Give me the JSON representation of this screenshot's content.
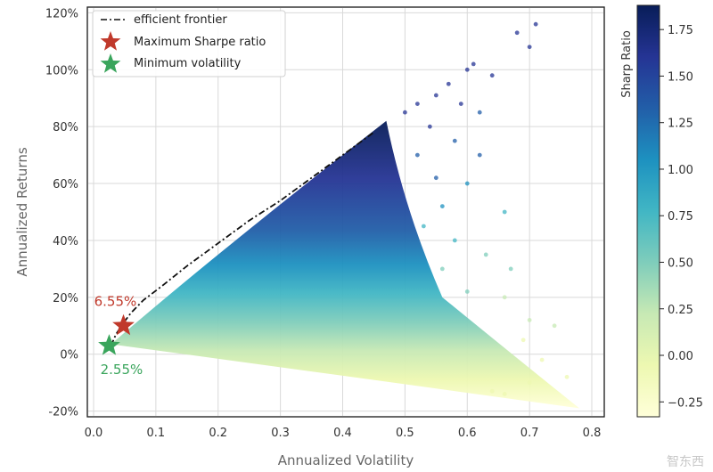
{
  "chart_data": {
    "type": "scatter",
    "title": "",
    "xlabel": "Annualized Volatility",
    "ylabel": "Annualized Returns",
    "xlim": [
      -0.01,
      0.82
    ],
    "ylim": [
      -0.22,
      1.22
    ],
    "x_ticks": [
      0.0,
      0.1,
      0.2,
      0.3,
      0.4,
      0.5,
      0.6,
      0.7,
      0.8
    ],
    "x_tick_labels": [
      "0.0",
      "0.1",
      "0.2",
      "0.3",
      "0.4",
      "0.5",
      "0.6",
      "0.7",
      "0.8"
    ],
    "y_ticks": [
      -0.2,
      0.0,
      0.2,
      0.4,
      0.6,
      0.8,
      1.0,
      1.2
    ],
    "y_tick_labels": [
      "-20%",
      "0%",
      "20%",
      "40%",
      "60%",
      "80%",
      "100%",
      "120%"
    ],
    "grid": true,
    "legend_position": "top-left",
    "series": [
      {
        "name": "efficient frontier",
        "kind": "line",
        "style": "dash-dot",
        "color": "#111111",
        "x": [
          0.028,
          0.036,
          0.048,
          0.06,
          0.08,
          0.11,
          0.15,
          0.2,
          0.25,
          0.3,
          0.35,
          0.4,
          0.45
        ],
        "y": [
          0.03,
          0.07,
          0.11,
          0.145,
          0.19,
          0.24,
          0.31,
          0.39,
          0.47,
          0.54,
          0.62,
          0.7,
          0.78
        ]
      },
      {
        "name": "Maximum Sharpe ratio",
        "kind": "marker",
        "marker": "star",
        "color": "#c0392b",
        "x": [
          0.048
        ],
        "y": [
          0.1
        ]
      },
      {
        "name": "Minimum volatility",
        "kind": "marker",
        "marker": "star",
        "color": "#3aa55c",
        "x": [
          0.025
        ],
        "y": [
          0.03
        ]
      }
    ],
    "portfolio_cloud": {
      "colormap": "YlGnBu",
      "color_by": "Sharp Ratio",
      "apex": [
        0.028,
        0.035
      ],
      "upper_edge_end": [
        0.47,
        0.82
      ],
      "lower_edge_end": [
        0.78,
        -0.19
      ],
      "outlier_points": [
        [
          0.71,
          1.16
        ],
        [
          0.68,
          1.13
        ],
        [
          0.7,
          1.08
        ],
        [
          0.61,
          1.02
        ],
        [
          0.6,
          1.0
        ],
        [
          0.64,
          0.98
        ],
        [
          0.57,
          0.95
        ],
        [
          0.55,
          0.91
        ],
        [
          0.59,
          0.88
        ],
        [
          0.62,
          0.85
        ],
        [
          0.52,
          0.88
        ],
        [
          0.5,
          0.85
        ],
        [
          0.54,
          0.8
        ],
        [
          0.58,
          0.75
        ],
        [
          0.62,
          0.7
        ],
        [
          0.52,
          0.7
        ],
        [
          0.55,
          0.62
        ],
        [
          0.6,
          0.6
        ],
        [
          0.56,
          0.52
        ],
        [
          0.66,
          0.5
        ],
        [
          0.53,
          0.45
        ],
        [
          0.58,
          0.4
        ],
        [
          0.63,
          0.35
        ],
        [
          0.67,
          0.3
        ],
        [
          0.56,
          0.3
        ],
        [
          0.6,
          0.22
        ],
        [
          0.66,
          0.2
        ],
        [
          0.7,
          0.12
        ],
        [
          0.74,
          0.1
        ],
        [
          0.69,
          0.05
        ],
        [
          0.72,
          -0.02
        ],
        [
          0.76,
          -0.08
        ],
        [
          0.7,
          -0.1
        ],
        [
          0.66,
          -0.14
        ],
        [
          0.64,
          -0.13
        ]
      ]
    },
    "annotations": [
      {
        "text": "6.55%",
        "x": 0.035,
        "y": 0.17,
        "color": "#c0392b"
      },
      {
        "text": "2.55%",
        "x": 0.045,
        "y": -0.07,
        "color": "#3aa55c"
      }
    ],
    "colorbar": {
      "label": "Sharp Ratio",
      "min": -0.33,
      "max": 1.88,
      "ticks": [
        -0.25,
        0.0,
        0.25,
        0.5,
        0.75,
        1.0,
        1.25,
        1.5,
        1.75
      ],
      "tick_labels": [
        "−0.25",
        "0.00",
        "0.25",
        "0.50",
        "0.75",
        "1.00",
        "1.25",
        "1.50",
        "1.75"
      ],
      "colors": [
        "#ffffd9",
        "#edf8b1",
        "#c7e9b4",
        "#7fcdbb",
        "#41b6c4",
        "#1d91c0",
        "#225ea8",
        "#253494",
        "#081d58"
      ]
    }
  },
  "watermark": "智东西"
}
